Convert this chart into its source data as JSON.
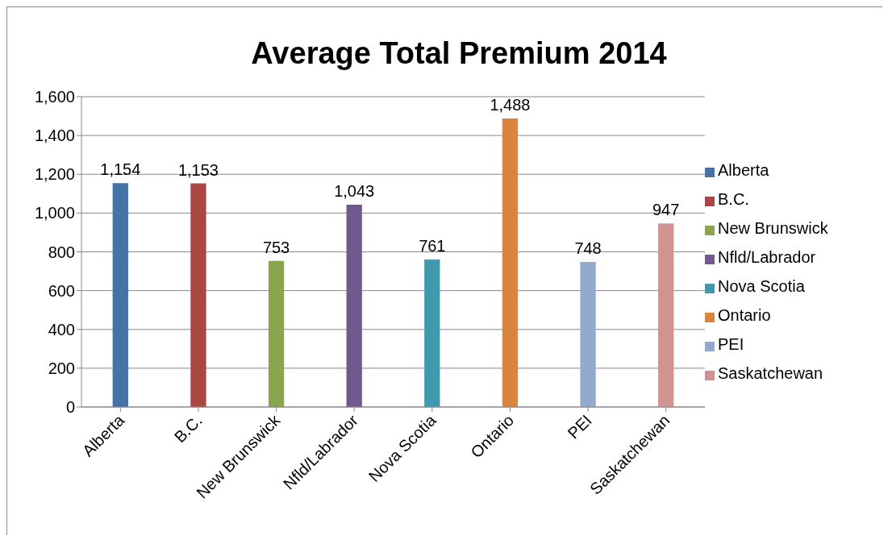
{
  "chart_data": {
    "type": "bar",
    "title": "Average Total Premium 2014",
    "categories": [
      "Alberta",
      "B.C.",
      "New Brunswick",
      "Nfld/Labrador",
      "Nova Scotia",
      "Ontario",
      "PEI",
      "Saskatchewan"
    ],
    "stacked": true,
    "series": [
      {
        "name": "Alberta",
        "color": "#4572a7",
        "values": [
          1154,
          null,
          null,
          null,
          null,
          null,
          null,
          null
        ],
        "value_labels": [
          "1,154",
          null,
          null,
          null,
          null,
          null,
          null,
          null
        ]
      },
      {
        "name": "B.C.",
        "color": "#aa4643",
        "values": [
          null,
          1153,
          null,
          null,
          null,
          null,
          null,
          null
        ],
        "value_labels": [
          null,
          "1,153",
          null,
          null,
          null,
          null,
          null,
          null
        ]
      },
      {
        "name": "New Brunswick",
        "color": "#89a54e",
        "values": [
          null,
          null,
          753,
          null,
          null,
          null,
          null,
          null
        ],
        "value_labels": [
          null,
          null,
          "753",
          null,
          null,
          null,
          null,
          null
        ]
      },
      {
        "name": "Nfld/Labrador",
        "color": "#71588f",
        "values": [
          null,
          null,
          null,
          1043,
          null,
          null,
          null,
          null
        ],
        "value_labels": [
          null,
          null,
          null,
          "1,043",
          null,
          null,
          null,
          null
        ]
      },
      {
        "name": "Nova Scotia",
        "color": "#4198af",
        "values": [
          null,
          null,
          null,
          null,
          761,
          null,
          null,
          null
        ],
        "value_labels": [
          null,
          null,
          null,
          null,
          "761",
          null,
          null,
          null
        ]
      },
      {
        "name": "Ontario",
        "color": "#db843d",
        "values": [
          null,
          null,
          null,
          null,
          null,
          1488,
          null,
          null
        ],
        "value_labels": [
          null,
          null,
          null,
          null,
          null,
          "1,488",
          null,
          null
        ]
      },
      {
        "name": "PEI",
        "color": "#93a9cf",
        "values": [
          null,
          null,
          null,
          null,
          null,
          null,
          748,
          null
        ],
        "value_labels": [
          null,
          null,
          null,
          null,
          null,
          null,
          "748",
          null
        ]
      },
      {
        "name": "Saskatchewan",
        "color": "#d19392",
        "values": [
          null,
          null,
          null,
          null,
          null,
          null,
          null,
          947
        ],
        "value_labels": [
          null,
          null,
          null,
          null,
          null,
          null,
          null,
          "947"
        ]
      }
    ],
    "ylim": [
      0,
      1600
    ],
    "yticks": [
      0,
      200,
      400,
      600,
      800,
      {
        "value": 1000,
        "label": "1,000"
      },
      {
        "value": 1200,
        "label": "1,200"
      },
      {
        "value": 1400,
        "label": "1,400"
      },
      {
        "value": 1600,
        "label": "1,600"
      }
    ],
    "grid": "y",
    "legend": "right"
  }
}
